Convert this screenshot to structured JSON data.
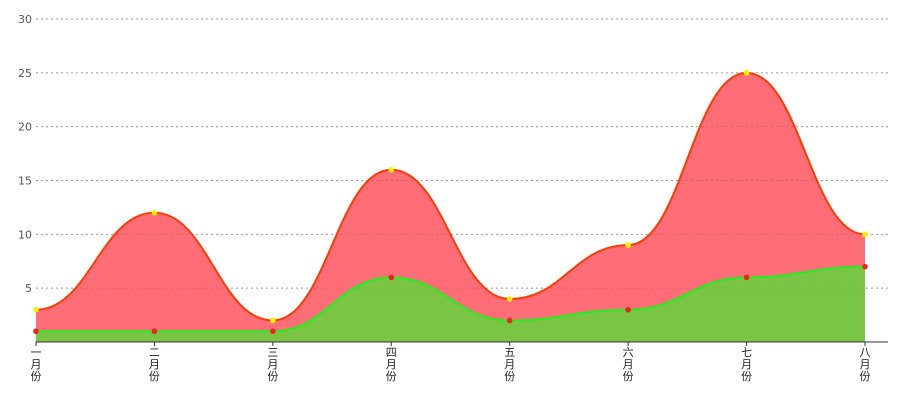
{
  "chart_data": {
    "type": "area",
    "categories": [
      "一月份",
      "二月份",
      "三月份",
      "四月份",
      "五月份",
      "六月份",
      "七月份",
      "八月份"
    ],
    "series": [
      {
        "values": [
          3,
          12,
          2,
          16,
          4,
          9,
          25,
          10
        ],
        "fill": "#ff4a55",
        "stroke": "#ff3a00",
        "point_color": "#ffee00",
        "fill_opacity": 0.8
      },
      {
        "values": [
          1,
          1,
          1,
          6,
          2,
          3,
          6,
          7
        ],
        "fill": "#22ff22",
        "stroke": "#22ee22",
        "point_color": "#ee2222",
        "fill_opacity": 0.6
      }
    ],
    "area_fills_note_none": "",
    "ylim": [
      0,
      30
    ],
    "yticks": [
      5,
      10,
      15,
      20,
      25,
      30
    ],
    "grid": true,
    "curve": "smooth"
  }
}
